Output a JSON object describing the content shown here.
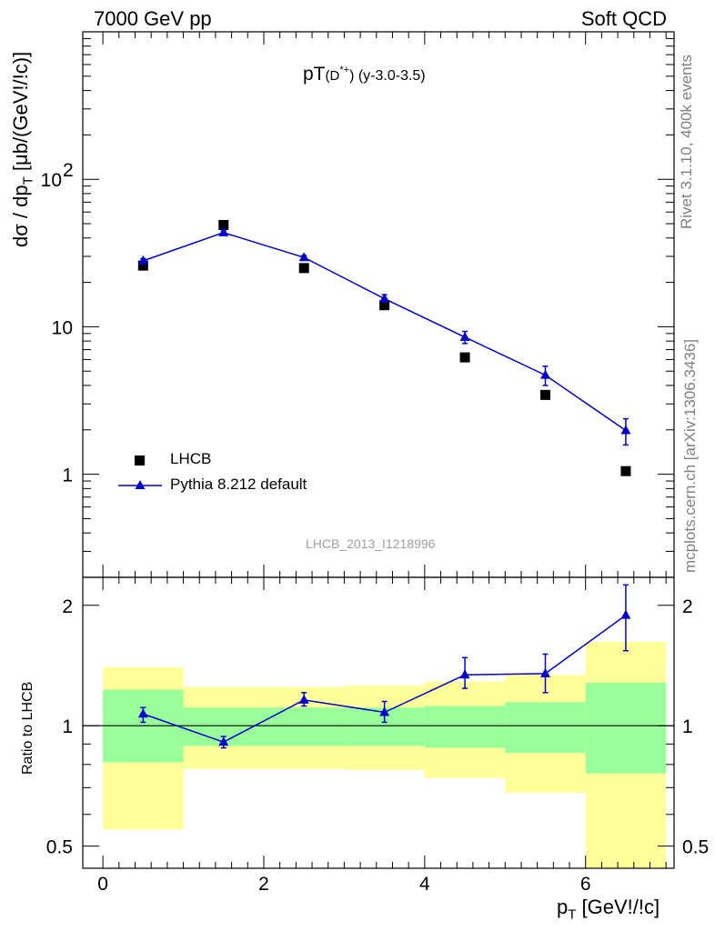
{
  "header": {
    "left": "7000 GeV pp",
    "right": "Soft QCD"
  },
  "side_notes": {
    "rivet": "Rivet 3.1.10,  400k events",
    "source": "mcplots.cern.ch [arXiv:1306.3436]"
  },
  "watermark": "LHCB_2013_I1218996",
  "chart_data": [
    {
      "type": "scatter",
      "title": "pT(D*+) (y-3.0-3.5)",
      "title_main": "pT",
      "title_sub": "(D",
      "title_sup": "*+",
      "title_rest": ") (y-3.0-3.5)",
      "ylabel": "dσ / dp",
      "ylabel_sub": "T",
      "ylabel_unit": "[μb/(GeV!/!c)]",
      "yscale": "log",
      "ylim": [
        0.2,
        1000
      ],
      "xlim": [
        -0.25,
        7.1
      ],
      "ytick_labels": [
        "1",
        "10",
        "10"
      ],
      "ytick_exponent": "2",
      "legend_position": "bottom-left",
      "series": [
        {
          "name": "LHCB",
          "marker": "square",
          "color": "#000000",
          "x": [
            0.5,
            1.5,
            2.5,
            3.5,
            4.5,
            5.5,
            6.5
          ],
          "y": [
            26,
            49,
            25,
            14,
            6.2,
            3.45,
            1.05
          ]
        },
        {
          "name": "Pythia 8.212 default",
          "marker": "triangle",
          "color": "#0000cc",
          "x": [
            0.5,
            1.5,
            2.5,
            3.5,
            4.5,
            5.5,
            6.5
          ],
          "y": [
            28,
            43.5,
            29.5,
            15.5,
            8.5,
            4.7,
            1.98
          ],
          "yerr": [
            1.0,
            1.2,
            0.9,
            1.0,
            0.8,
            0.7,
            0.4
          ]
        }
      ]
    },
    {
      "type": "line",
      "ylabel": "Ratio to LHCB",
      "xlabel": "p",
      "xlabel_sub": "T",
      "xlabel_unit": "[GeV!/!c]",
      "yscale": "log",
      "ylim": [
        0.44,
        2.35
      ],
      "xlim": [
        -0.25,
        7.1
      ],
      "ytick_labels": [
        "0.5",
        "1",
        "2"
      ],
      "xtick_labels": [
        "0",
        "2",
        "4",
        "6"
      ],
      "bands": [
        {
          "xlo": 0,
          "xhi": 1,
          "inner": [
            0.81,
            1.23
          ],
          "outer": [
            0.55,
            1.4
          ]
        },
        {
          "xlo": 1,
          "xhi": 2,
          "inner": [
            0.89,
            1.11
          ],
          "outer": [
            0.78,
            1.25
          ]
        },
        {
          "xlo": 2,
          "xhi": 3,
          "inner": [
            0.89,
            1.11
          ],
          "outer": [
            0.78,
            1.25
          ]
        },
        {
          "xlo": 3,
          "xhi": 4,
          "inner": [
            0.89,
            1.11
          ],
          "outer": [
            0.775,
            1.26
          ]
        },
        {
          "xlo": 4,
          "xhi": 5,
          "inner": [
            0.88,
            1.12
          ],
          "outer": [
            0.74,
            1.29
          ]
        },
        {
          "xlo": 5,
          "xhi": 6,
          "inner": [
            0.855,
            1.145
          ],
          "outer": [
            0.68,
            1.34
          ]
        },
        {
          "xlo": 6,
          "xhi": 7,
          "inner": [
            0.76,
            1.28
          ],
          "outer": [
            0.42,
            1.62
          ]
        }
      ],
      "series": [
        {
          "name": "Pythia 8.212 default",
          "color": "#0000cc",
          "x": [
            0.5,
            1.5,
            2.5,
            3.5,
            4.5,
            5.5,
            6.5
          ],
          "y": [
            1.07,
            0.91,
            1.16,
            1.08,
            1.34,
            1.35,
            1.89
          ],
          "ylo": [
            1.02,
            0.88,
            1.12,
            1.02,
            1.24,
            1.21,
            1.54
          ],
          "yhi": [
            1.11,
            0.94,
            1.21,
            1.15,
            1.48,
            1.51,
            2.25
          ]
        }
      ]
    }
  ]
}
